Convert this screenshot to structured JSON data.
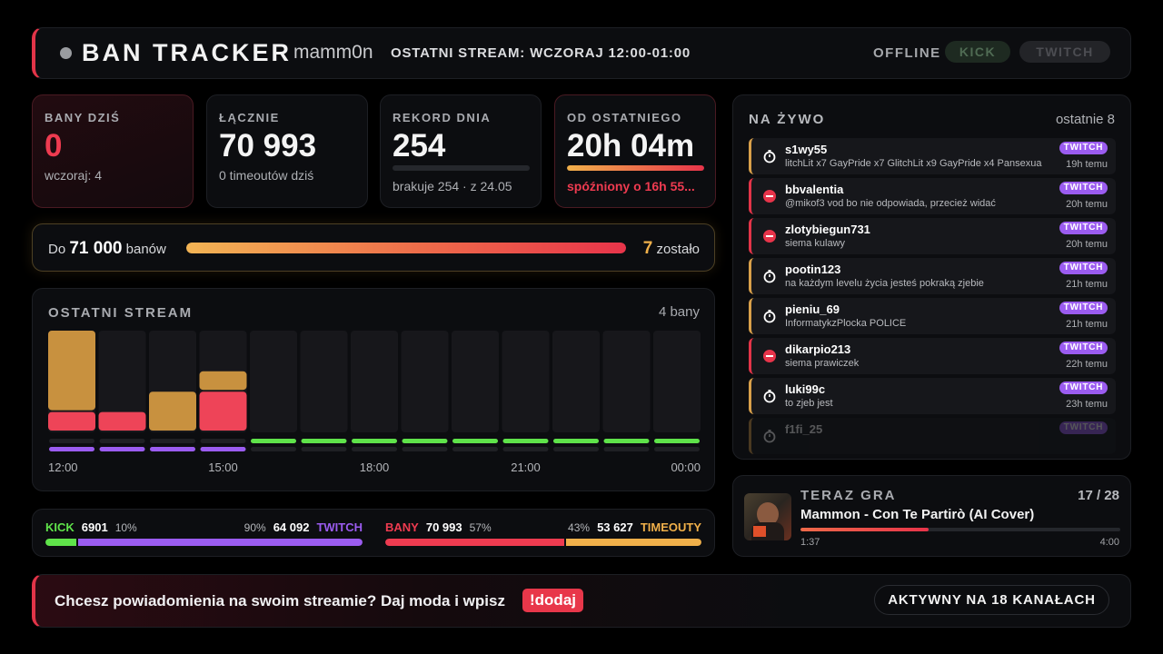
{
  "header": {
    "title": "BAN TRACKER",
    "channel": "mamm0n",
    "last_stream": "OSTATNI STREAM: WCZORAJ 12:00-01:00",
    "status": "OFFLINE",
    "platforms": [
      "KICK",
      "TWITCH"
    ]
  },
  "stats": [
    {
      "label": "BANY DZIŚ",
      "value": 0,
      "sub": "wczoraj: 4",
      "color": "#ee3b50"
    },
    {
      "label": "ŁĄCZNIE",
      "value": {
        "value": 70993,
        "label": "70 993"
      },
      "sub": "0 timeoutów dziś",
      "color": "#f4f4f4"
    },
    {
      "label": "REKORD DNIA",
      "value": 254,
      "sub": "brakuje 254 · z 24.05",
      "color": "#f4f4f4"
    },
    {
      "label": "OD OSTATNIEGO",
      "value": "20h 04m",
      "sub": "spóźniony o 16h 55...",
      "color": "#f4f4f4",
      "sub_color": "#ee3b50",
      "progress": 100,
      "progress_range": [
        0,
        100
      ]
    }
  ],
  "goal": {
    "prefix": "Do",
    "target": {
      "value": 71000,
      "label": "71 000"
    },
    "unit": "banów",
    "remaining": 7,
    "remaining_text": "zostało"
  },
  "chart_data": {
    "type": "bar",
    "stacked": true,
    "title": "OSTATNI STREAM",
    "summary": "4 bany",
    "categories": [
      "12:00",
      null,
      null,
      "15:00",
      null,
      null,
      "18:00",
      null,
      null,
      "21:00",
      null,
      null,
      "00:00"
    ],
    "series": [
      {
        "color": "#ee4458",
        "values": [
          1,
          1,
          0,
          2,
          0,
          0,
          0,
          0,
          0,
          0,
          0,
          0,
          0
        ]
      },
      {
        "color": "#c8913f",
        "values": [
          4,
          0,
          2,
          1,
          0,
          0,
          0,
          0,
          0,
          0,
          0,
          0,
          0
        ]
      }
    ],
    "ylim": [
      0,
      5
    ],
    "live_rows": [
      {
        "color": "#5fe34a",
        "values": [
          0,
          0,
          0,
          0,
          1,
          1,
          1,
          1,
          1,
          1,
          1,
          1,
          1
        ]
      },
      {
        "color": "#9b5cf0",
        "values": [
          1,
          1,
          1,
          1,
          0,
          0,
          0,
          0,
          0,
          0,
          0,
          0,
          0
        ]
      }
    ]
  },
  "splits": [
    {
      "labels": [
        "KICK",
        "TWITCH"
      ],
      "counts": [
        "6901",
        "64 092"
      ],
      "values": [
        10,
        90
      ],
      "value_labels": [
        "10%",
        "90%"
      ],
      "colors": [
        "#5fe34a",
        "#9b5cf0"
      ]
    },
    {
      "labels": [
        "BANY",
        "TIMEOUTY"
      ],
      "counts": [
        "70 993",
        "53 627"
      ],
      "values": [
        57,
        43
      ],
      "value_labels": [
        "57%",
        "43%"
      ],
      "colors": [
        "#ee3b50",
        "#f0b04a"
      ]
    }
  ],
  "live": {
    "title": "NA ŻYWO",
    "subtitle": "ostatnie 8",
    "items": [
      {
        "user": "s1wy55",
        "message": "litchLit x7 GayPride x7 GlitchLit x9 GayPride x4 Pansexua",
        "platform": "TWITCH",
        "time": "19h temu",
        "icon": "timeout",
        "color": "#d9a04a"
      },
      {
        "user": "bbvalentia",
        "message": "@mikof3 vod bo nie odpowiada, przecież widać",
        "platform": "TWITCH",
        "time": "20h temu",
        "icon": "ban",
        "color": "#e23448"
      },
      {
        "user": "zlotybiegun731",
        "message": "siema kulawy",
        "platform": "TWITCH",
        "time": "20h temu",
        "icon": "ban",
        "color": "#e23448"
      },
      {
        "user": "pootin123",
        "message": "na każdym levelu życia jesteś pokraką zjebie",
        "platform": "TWITCH",
        "time": "21h temu",
        "icon": "timeout",
        "color": "#d9a04a"
      },
      {
        "user": "pieniu_69",
        "message": "InformatykzPlocka POLICE",
        "platform": "TWITCH",
        "time": "21h temu",
        "icon": "timeout",
        "color": "#d9a04a"
      },
      {
        "user": "dikarpio213",
        "message": "siema prawiczek",
        "platform": "TWITCH",
        "time": "22h temu",
        "icon": "ban",
        "color": "#e23448"
      },
      {
        "user": "luki99c",
        "message": "to zjeb jest",
        "platform": "TWITCH",
        "time": "23h temu",
        "icon": "timeout",
        "color": "#d9a04a"
      },
      {
        "user": "f1fi_25",
        "platform": "TWITCH",
        "icon": "timeout",
        "color": "#d9a04a"
      }
    ]
  },
  "now_playing": {
    "title": "TERAZ GRA",
    "position": "17 / 28",
    "song": "Mammon - Con Te Partirò (AI Cover)",
    "elapsed": "1:37",
    "duration": "4:00",
    "progress": 40,
    "progress_range": [
      0,
      100
    ]
  },
  "footer": {
    "text": "Chcesz powiadomienia na swoim streamie? Daj moda i wpisz",
    "command": "!dodaj",
    "channels": "AKTYWNY NA 18 KANAŁACH"
  }
}
